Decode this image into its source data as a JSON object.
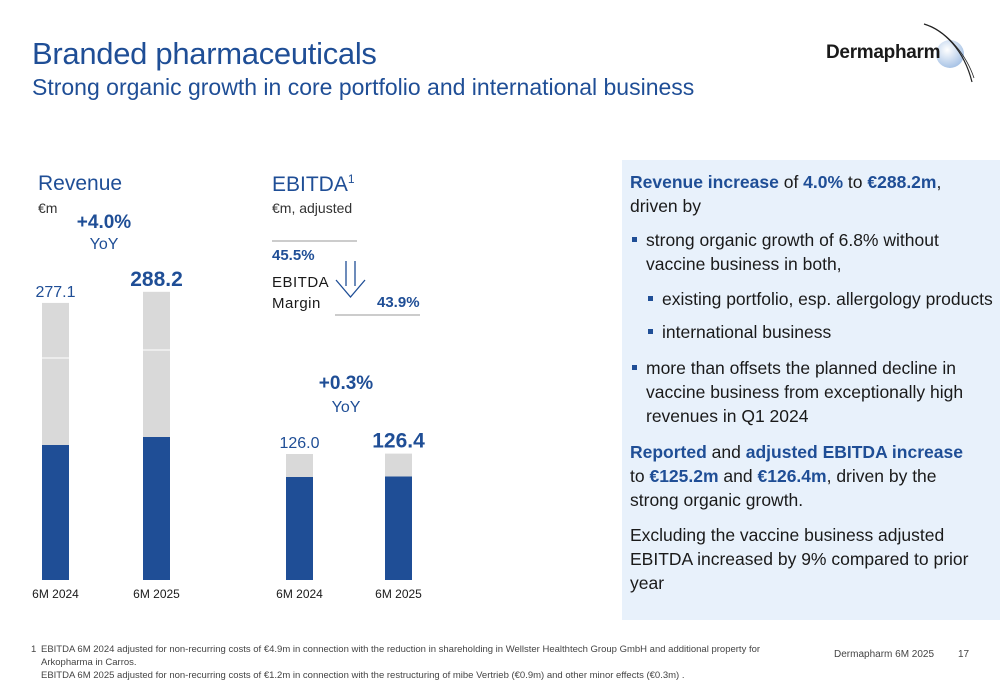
{
  "header": {
    "title": "Branded pharmaceuticals",
    "subtitle": "Strong organic growth in core portfolio and international business",
    "logo_text": "Dermapharm"
  },
  "chart_data": [
    {
      "type": "bar",
      "title": "Revenue",
      "unit": "€m",
      "categories": [
        "6M 2024",
        "6M 2025"
      ],
      "totals": [
        277.1,
        288.2
      ],
      "total_labels": [
        "277.1",
        "288.2"
      ],
      "series": [
        {
          "values": [
            135,
            143
          ],
          "color": "#1f4e96"
        },
        {
          "values": [
            142.1,
            145.2
          ],
          "color": "#d9d9d9"
        }
      ],
      "segment_splits": [
        [
          135,
          222
        ],
        [
          143,
          230
        ]
      ],
      "yoy_value": "+4.0%",
      "yoy_label": "YoY",
      "ylim": [
        0,
        300
      ]
    },
    {
      "type": "bar",
      "title": "EBITDA",
      "title_sup": "1",
      "unit": "€m, adjusted",
      "categories": [
        "6M 2024",
        "6M 2025"
      ],
      "totals": [
        126.0,
        126.4
      ],
      "total_labels": [
        "126.0",
        "126.4"
      ],
      "series": [
        {
          "values": [
            103,
            103.5
          ],
          "color": "#1f4e96"
        },
        {
          "values": [
            23,
            22.9
          ],
          "color": "#d9d9d9"
        }
      ],
      "yoy_value": "+0.3%",
      "yoy_label": "YoY",
      "margin_label_1": "EBITDA",
      "margin_label_2": "Margin",
      "margins": [
        "45.5%",
        "43.9%"
      ],
      "ylim": [
        0,
        300
      ]
    }
  ],
  "panel": {
    "p1_b1": "Revenue increase",
    "p1_t1": " of ",
    "p1_b2": "4.0%",
    "p1_t2": " to ",
    "p1_b3": "€288.2m",
    "p1_t3": ", driven by",
    "bullet1": "strong organic growth of 6.8% without vaccine business in both,",
    "sub1": "existing portfolio, esp. allergology products",
    "sub2": "international business",
    "bullet2": "more than offsets the planned decline in vaccine business from exceptionally high revenues in Q1 2024",
    "p2_b1": "Reported",
    "p2_t1": " and ",
    "p2_b2": "adjusted EBITDA increase",
    "p2_t2": " to ",
    "p2_b3": "€125.2m",
    "p2_t3": " and ",
    "p2_b4": "€126.4m",
    "p2_t4": ", driven by the strong organic growth.",
    "p3": "Excluding the vaccine business adjusted EBITDA increased by 9% compared to prior year"
  },
  "footer": {
    "footnote_num": "1",
    "footnote_line1": "EBITDA 6M 2024 adjusted for non-recurring costs of €4.9m in connection with the reduction in shareholding in Wellster Healthtech Group GmbH and additional property for Arkopharma in Carros.",
    "footnote_line2": "EBITDA 6M 2025 adjusted for non-recurring costs of €1.2m in connection with the restructuring of mibe Vertrieb (€0.9m) and other minor effects (€0.3m) .",
    "doc_label": "Dermapharm 6M 2025",
    "page": "17"
  },
  "colors": {
    "accent": "#1f4e96",
    "bar_grey": "#d9d9d9",
    "panel_bg": "#e8f1fb"
  }
}
